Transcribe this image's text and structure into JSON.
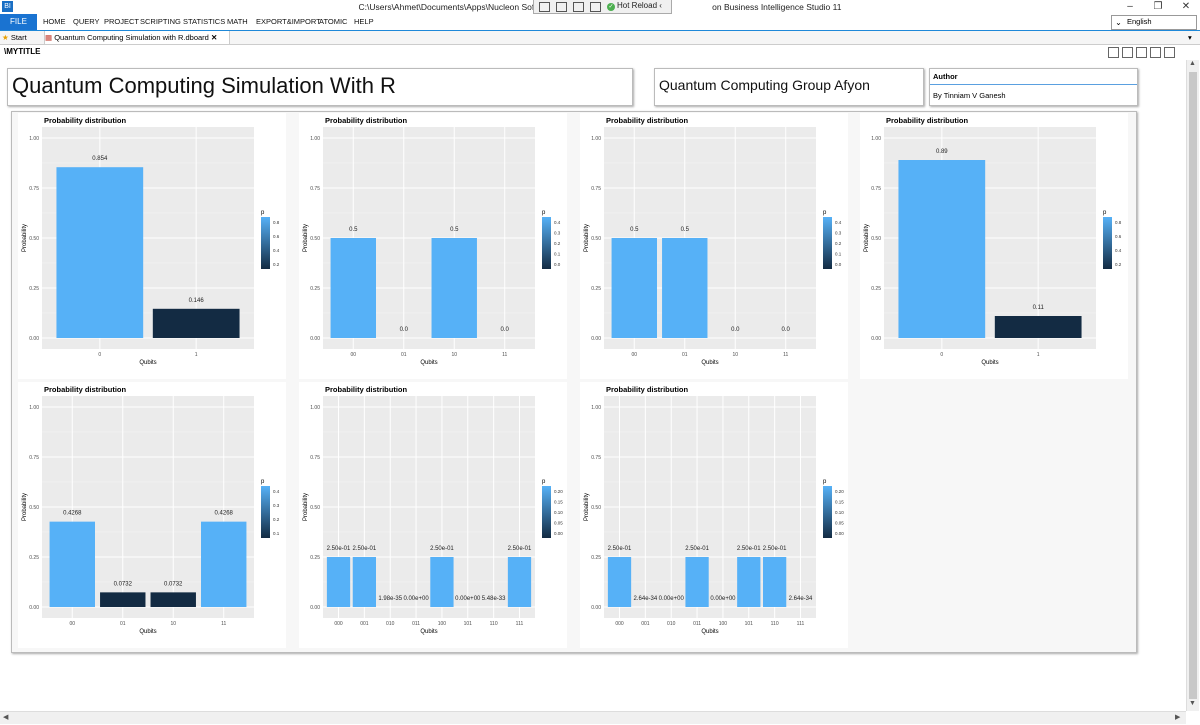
{
  "window": {
    "title": "C:\\Users\\Ahmet\\Documents\\Apps\\Nucleon Software\\RQ",
    "title_tail": "on Business Intelligence Studio 11",
    "hot_reload": "Hot Reload"
  },
  "menu": {
    "file": "FILE",
    "items": [
      "HOME",
      "QUERY",
      "PROJECT",
      "SCRIPTING",
      "STATISTICS",
      "MATH",
      "EXPORT&IMPORT",
      "ATOMIC",
      "HELP"
    ],
    "language": "English"
  },
  "tabs": {
    "start": "Start",
    "active": "Quantum Computing Simulation with R.dboard"
  },
  "dashboard": {
    "mytitle": "\\MYTITLE",
    "title": "Quantum Computing Simulation With R",
    "group": "Quantum Computing Group Afyon",
    "author_header": "Author",
    "author": "By Tinniam V Ganesh"
  },
  "colors": {
    "accent": "#1a73d1",
    "bar_high": "#56b1f7",
    "bar_low": "#132b43",
    "panel": "#ebebeb"
  },
  "chart_data": [
    {
      "type": "bar",
      "title": "Probability distribution",
      "xlabel": "Qubits",
      "ylabel": "Probability",
      "categories": [
        "0",
        "1"
      ],
      "values": [
        0.854,
        0.146
      ],
      "labels": [
        "0.854",
        "0.146"
      ],
      "ylim": [
        0,
        1
      ],
      "yticks": [
        "0.00",
        "0.25",
        "0.50",
        "0.75",
        "1.00"
      ],
      "legend": {
        "title": "p",
        "ticks": [
          "0.8",
          "0.6",
          "0.4",
          "0.2"
        ],
        "min": 0.146,
        "max": 0.854
      }
    },
    {
      "type": "bar",
      "title": "Probability distribution",
      "xlabel": "Qubits",
      "ylabel": "Probability",
      "categories": [
        "00",
        "01",
        "10",
        "11"
      ],
      "values": [
        0.5,
        0,
        0.5,
        0
      ],
      "labels": [
        "0.5",
        "0.0",
        "0.5",
        "0.0"
      ],
      "ylim": [
        0,
        1
      ],
      "yticks": [
        "0.00",
        "0.25",
        "0.50",
        "0.75",
        "1.00"
      ],
      "legend": {
        "title": "p",
        "ticks": [
          "0.4",
          "0.3",
          "0.2",
          "0.1",
          "0.0"
        ],
        "min": 0,
        "max": 0.5
      }
    },
    {
      "type": "bar",
      "title": "Probability distribution",
      "xlabel": "Qubits",
      "ylabel": "Probability",
      "categories": [
        "00",
        "01",
        "10",
        "11"
      ],
      "values": [
        0.5,
        0.5,
        0,
        0
      ],
      "labels": [
        "0.5",
        "0.5",
        "0.0",
        "0.0"
      ],
      "ylim": [
        0,
        1
      ],
      "yticks": [
        "0.00",
        "0.25",
        "0.50",
        "0.75",
        "1.00"
      ],
      "legend": {
        "title": "p",
        "ticks": [
          "0.4",
          "0.3",
          "0.2",
          "0.1",
          "0.0"
        ],
        "min": 0,
        "max": 0.5
      }
    },
    {
      "type": "bar",
      "title": "Probability distribution",
      "xlabel": "Qubits",
      "ylabel": "Probability",
      "categories": [
        "0",
        "1"
      ],
      "values": [
        0.89,
        0.11
      ],
      "labels": [
        "0.89",
        "0.11"
      ],
      "ylim": [
        0,
        1
      ],
      "yticks": [
        "0.00",
        "0.25",
        "0.50",
        "0.75",
        "1.00"
      ],
      "legend": {
        "title": "p",
        "ticks": [
          "0.8",
          "0.6",
          "0.4",
          "0.2"
        ],
        "min": 0.11,
        "max": 0.89
      }
    },
    {
      "type": "bar",
      "title": "Probability distribution",
      "xlabel": "Qubits",
      "ylabel": "Probability",
      "categories": [
        "00",
        "01",
        "10",
        "11"
      ],
      "values": [
        0.4268,
        0.0732,
        0.0732,
        0.4268
      ],
      "labels": [
        "0.4268",
        "0.0732",
        "0.0732",
        "0.4268"
      ],
      "ylim": [
        0,
        1
      ],
      "yticks": [
        "0.00",
        "0.25",
        "0.50",
        "0.75",
        "1.00"
      ],
      "legend": {
        "title": "p",
        "ticks": [
          "0.4",
          "0.3",
          "0.2",
          "0.1"
        ],
        "min": 0.0732,
        "max": 0.4268
      }
    },
    {
      "type": "bar",
      "title": "Probability distribution",
      "xlabel": "Qubits",
      "ylabel": "Probability",
      "categories": [
        "000",
        "001",
        "010",
        "011",
        "100",
        "101",
        "110",
        "111"
      ],
      "values": [
        0.25,
        0.25,
        0,
        0,
        0.25,
        0,
        0,
        0.25
      ],
      "labels": [
        "2.50e-01",
        "2.50e-01",
        "1.98e-35",
        "0.00e+00",
        "2.50e-01",
        "0.00e+00",
        "5.48e-33",
        "2.50e-01"
      ],
      "ylim": [
        0,
        1
      ],
      "yticks": [
        "0.00",
        "0.25",
        "0.50",
        "0.75",
        "1.00"
      ],
      "legend": {
        "title": "p",
        "ticks": [
          "0.20",
          "0.15",
          "0.10",
          "0.05",
          "0.00"
        ],
        "min": 0,
        "max": 0.25
      }
    },
    {
      "type": "bar",
      "title": "Probability distribution",
      "xlabel": "Qubits",
      "ylabel": "Probability",
      "categories": [
        "000",
        "001",
        "010",
        "011",
        "100",
        "101",
        "110",
        "111"
      ],
      "values": [
        0.25,
        0,
        0,
        0.25,
        0,
        0.25,
        0.25,
        0
      ],
      "labels": [
        "2.50e-01",
        "2.64e-34",
        "0.00e+00",
        "2.50e-01",
        "0.00e+00",
        "2.50e-01",
        "2.50e-01",
        "2.64e-34"
      ],
      "ylim": [
        0,
        1
      ],
      "yticks": [
        "0.00",
        "0.25",
        "0.50",
        "0.75",
        "1.00"
      ],
      "legend": {
        "title": "p",
        "ticks": [
          "0.20",
          "0.15",
          "0.10",
          "0.05",
          "0.00"
        ],
        "min": 0,
        "max": 0.25
      }
    }
  ]
}
